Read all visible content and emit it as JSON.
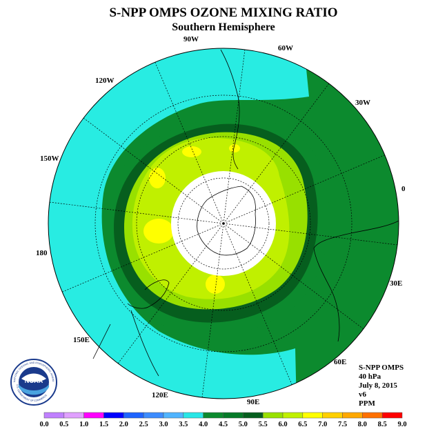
{
  "title": "S-NPP OMPS OZONE MIXING RATIO",
  "subtitle": "Southern Hemisphere",
  "longitude_labels": [
    "0",
    "30E",
    "60E",
    "90E",
    "120E",
    "150E",
    "180",
    "150W",
    "120W",
    "90W",
    "60W",
    "30W"
  ],
  "info": {
    "instrument": "S-NPP OMPS",
    "level": "40 hPa",
    "date": "July 8, 2015",
    "version": "v6",
    "units": "PPM"
  },
  "logo": {
    "text": "NOAA",
    "ring_text": "NATIONAL OCEANIC AND ATMOSPHERIC ADMINISTRATION",
    "ring_text_bottom": "U.S. DEPARTMENT OF COMMERCE"
  },
  "colorbar": {
    "ticks": [
      "0.0",
      "0.5",
      "1.0",
      "1.5",
      "2.0",
      "2.5",
      "3.0",
      "3.5",
      "4.0",
      "4.5",
      "5.0",
      "5.5",
      "6.0",
      "6.5",
      "7.0",
      "7.5",
      "8.0",
      "8.5",
      "9.0"
    ],
    "colors": [
      "#c080ff",
      "#e0a0ff",
      "#ff00ff",
      "#0000ff",
      "#1e64ff",
      "#3c8cff",
      "#50b4ff",
      "#28e6e6",
      "#0c8a2e",
      "#067a28",
      "#065e1e",
      "#98e000",
      "#c0f000",
      "#ffff00",
      "#ffd000",
      "#ffa800",
      "#ff7000",
      "#ff0000",
      "#8c5a3c"
    ]
  },
  "map_colors": {
    "cyan_3_5_4_0": "#28ece2",
    "green_4_0_4_5": "#0c8a2e",
    "green_4_5_5_0": "#067a28",
    "dkgreen_5_0": "#065e1e",
    "ygreen_5_5_6_0": "#98e000",
    "lime_6_0_6_5": "#c0f000",
    "yellow_6_5_7_0": "#ffff00",
    "missing": "#ffffff"
  }
}
